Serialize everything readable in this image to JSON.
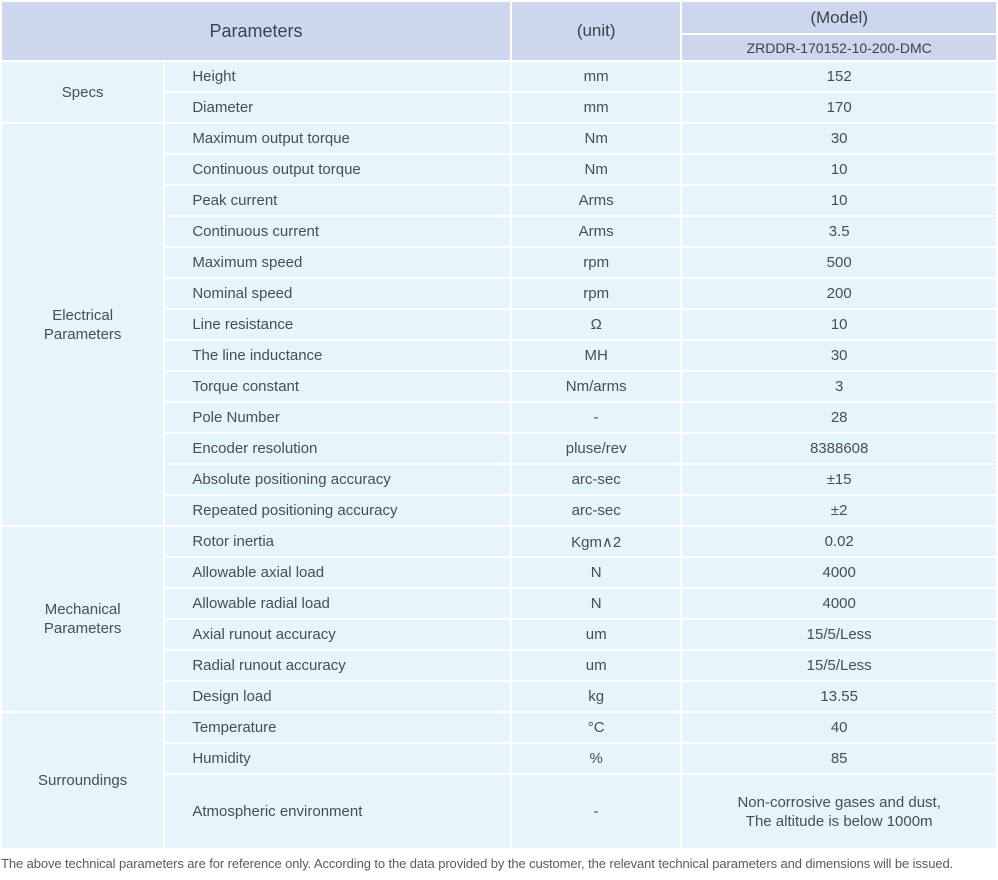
{
  "table": {
    "header": {
      "parameters": "Parameters",
      "unit": "(unit)",
      "model": "(Model)",
      "model_code": "ZRDDR-170152-10-200-DMC"
    },
    "groups": [
      {
        "label": "Specs",
        "rows": [
          {
            "name": "Height",
            "unit": "mm",
            "value": "152"
          },
          {
            "name": "Diameter",
            "unit": "mm",
            "value": "170"
          }
        ]
      },
      {
        "label": "Electrical Parameters",
        "rows": [
          {
            "name": "Maximum output torque",
            "unit": "Nm",
            "value": "30"
          },
          {
            "name": "Continuous output torque",
            "unit": "Nm",
            "value": "10"
          },
          {
            "name": "Peak current",
            "unit": "Arms",
            "value": "10"
          },
          {
            "name": "Continuous current",
            "unit": "Arms",
            "value": "3.5"
          },
          {
            "name": "Maximum speed",
            "unit": "rpm",
            "value": "500"
          },
          {
            "name": "Nominal speed",
            "unit": "rpm",
            "value": "200"
          },
          {
            "name": "Line resistance",
            "unit": "Ω",
            "value": "10"
          },
          {
            "name": "The line inductance",
            "unit": "MH",
            "value": "30"
          },
          {
            "name": "Torque constant",
            "unit": "Nm/arms",
            "value": "3"
          },
          {
            "name": "Pole Number",
            "unit": "-",
            "value": "28"
          },
          {
            "name": "Encoder resolution",
            "unit": "pluse/rev",
            "value": "8388608"
          },
          {
            "name": "Absolute positioning accuracy",
            "unit": "arc-sec",
            "value": "±15"
          },
          {
            "name": "Repeated positioning accuracy",
            "unit": "arc-sec",
            "value": "±2"
          }
        ]
      },
      {
        "label": "Mechanical Parameters",
        "rows": [
          {
            "name": "Rotor inertia",
            "unit": "Kgm∧2",
            "value": "0.02"
          },
          {
            "name": "Allowable axial load",
            "unit": "N",
            "value": "4000"
          },
          {
            "name": "Allowable radial load",
            "unit": "N",
            "value": "4000"
          },
          {
            "name": "Axial runout accuracy",
            "unit": "um",
            "value": "15/5/Less"
          },
          {
            "name": "Radial runout accuracy",
            "unit": "um",
            "value": "15/5/Less"
          },
          {
            "name": "Design load",
            "unit": "kg",
            "value": "13.55"
          }
        ]
      },
      {
        "label": "Surroundings",
        "rows": [
          {
            "name": "Temperature",
            "unit": "°C",
            "value": "40"
          },
          {
            "name": "Humidity",
            "unit": "%",
            "value": "85"
          },
          {
            "name": "Atmospheric environment",
            "unit": "-",
            "value": "Non-corrosive gases and dust,\nThe altitude is below 1000m",
            "tall": true
          }
        ]
      }
    ]
  },
  "footer_note": "The above technical parameters are for reference only. According to the data provided by the customer, the relevant technical parameters and dimensions will be issued.",
  "colors": {
    "header_bg": "#ccd7ee",
    "row_bg": "#e6f4fc",
    "separator": "#ffffff",
    "header_text": "#3d434b",
    "body_text": "#474e56"
  }
}
